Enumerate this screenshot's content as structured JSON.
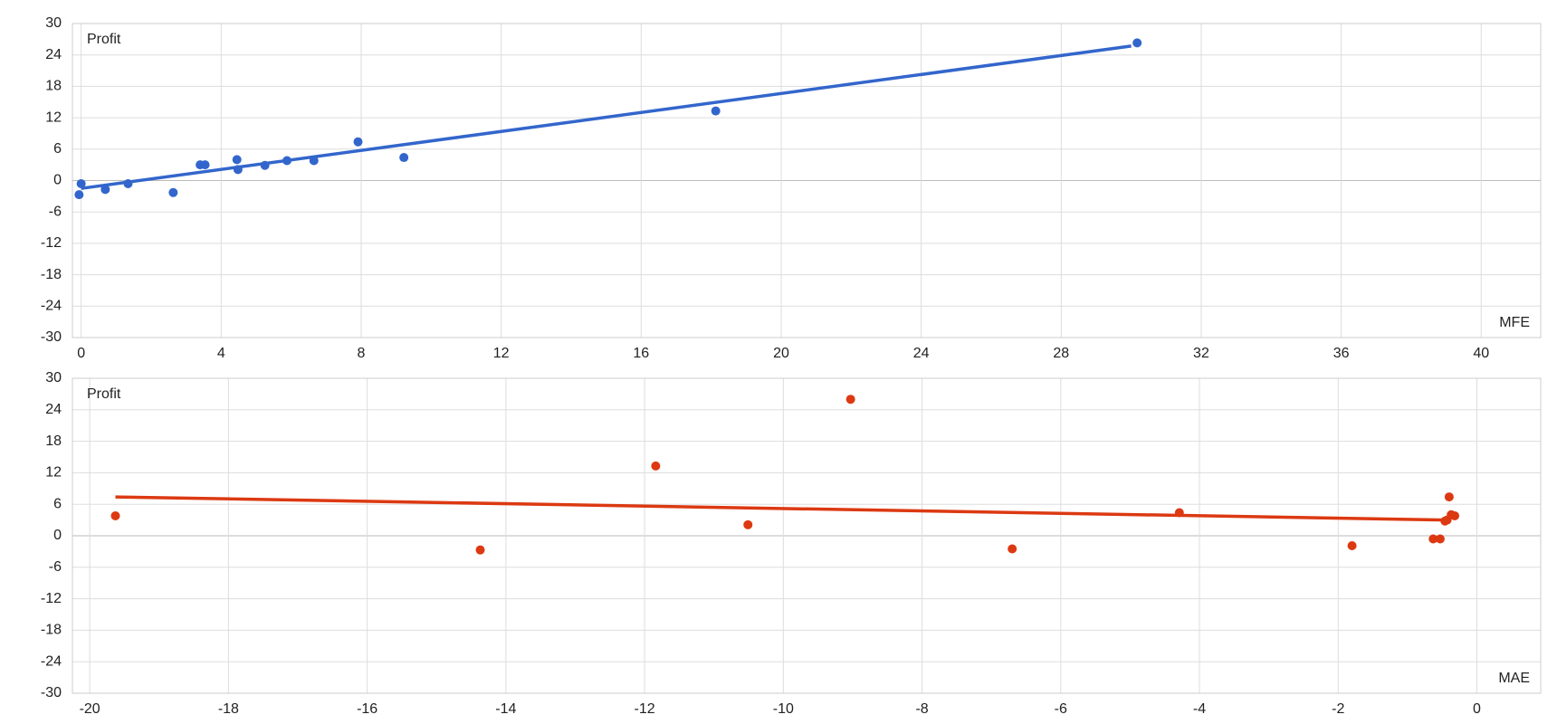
{
  "chart_data": [
    {
      "type": "scatter",
      "y_label": "Profit",
      "x_label": "MFE",
      "color": "#3366cc",
      "x": [
        0,
        -0.06,
        0.69,
        1.34,
        2.63,
        3.4,
        3.54,
        4.45,
        4.48,
        5.25,
        5.88,
        6.65,
        7.91,
        9.22,
        18.13,
        30.17
      ],
      "values": [
        -0.6,
        -2.7,
        -1.7,
        -0.6,
        -2.3,
        3.0,
        3.0,
        4.0,
        2.1,
        2.9,
        3.8,
        3.8,
        7.4,
        4.4,
        13.3,
        26.3
      ],
      "trendline": {
        "x": [
          0,
          30.0
        ],
        "values": [
          -1.5,
          25.7
        ]
      },
      "xlim": [
        -0.25,
        41.7
      ],
      "ylim": [
        -30,
        30
      ],
      "xticks": [
        0,
        4,
        8,
        12,
        16,
        20,
        24,
        28,
        32,
        36,
        40
      ],
      "yticks": [
        -30,
        -24,
        -18,
        -12,
        -6,
        0,
        6,
        12,
        18,
        24,
        30
      ],
      "grid": true
    },
    {
      "type": "scatter",
      "y_label": "Profit",
      "x_label": "MAE",
      "color": "#dc3912",
      "x": [
        -19.63,
        -14.37,
        -11.84,
        -10.51,
        -9.03,
        -6.7,
        -4.29,
        -1.8,
        -0.63,
        -0.53,
        -0.46,
        -0.43,
        -0.4,
        -0.37,
        -0.32
      ],
      "values": [
        3.8,
        -2.7,
        13.3,
        2.1,
        26.0,
        -2.5,
        4.4,
        -1.9,
        -0.6,
        -0.6,
        2.8,
        3.0,
        7.4,
        4.0,
        3.8
      ],
      "trendline": {
        "x": [
          -19.63,
          -0.45
        ],
        "values": [
          7.4,
          3.0
        ]
      },
      "xlim": [
        -20.25,
        0.92
      ],
      "ylim": [
        -30,
        30
      ],
      "xticks": [
        -20,
        -18,
        -16,
        -14,
        -12,
        -10,
        -8,
        -6,
        -4,
        -2,
        0
      ],
      "yticks": [
        -30,
        -24,
        -18,
        -12,
        -6,
        0,
        6,
        12,
        18,
        24,
        30
      ],
      "grid": true
    }
  ]
}
